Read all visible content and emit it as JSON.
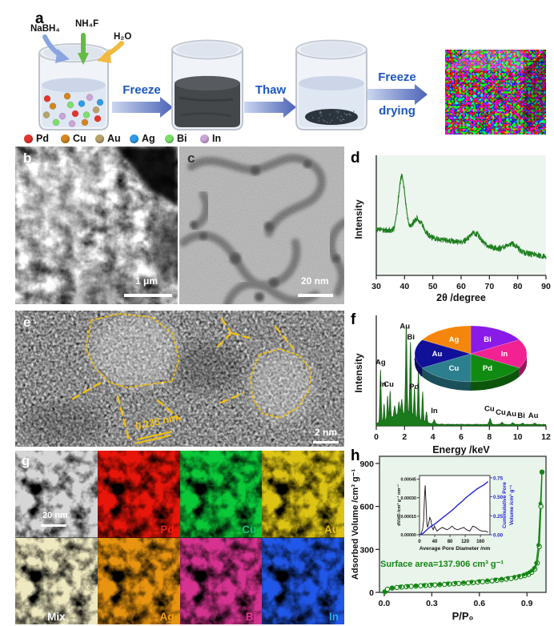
{
  "figure": {
    "panel_a": {
      "label": "a",
      "reagents": [
        {
          "name": "NaBH₄",
          "arrow_color": "#8aa4e2"
        },
        {
          "name": "NH₄F",
          "arrow_color": "#66bb44"
        },
        {
          "name": "H₂O",
          "arrow_color": "#f0bb3f"
        }
      ],
      "steps": [
        {
          "label": "Freeze"
        },
        {
          "label": "Thaw"
        },
        {
          "label_line1": "Freeze",
          "label_line2": "drying"
        }
      ],
      "step_text_color": "#1b57c4",
      "legend": [
        {
          "element": "Pd",
          "color": "#e4352b"
        },
        {
          "element": "Cu",
          "color": "#d5861c"
        },
        {
          "element": "Au",
          "color": "#b8a26a"
        },
        {
          "element": "Ag",
          "color": "#2e9ce6"
        },
        {
          "element": "Bi",
          "color": "#7ce06a"
        },
        {
          "element": "In",
          "color": "#cba4d8"
        }
      ]
    },
    "panel_b": {
      "label": "b",
      "scale_bar": "1 μm"
    },
    "panel_c": {
      "label": "c",
      "scale_bar": "20 nm"
    },
    "panel_d": {
      "label": "d"
    },
    "panel_e": {
      "label": "e",
      "lattice_spacing": "0.233 nm",
      "scale_bar": "2 nm",
      "annotation_color": "#f2c012"
    },
    "panel_f": {
      "label": "f"
    },
    "panel_g": {
      "label": "g",
      "scale_bar": "20 nm",
      "tiles": [
        {
          "name": "HAADF",
          "label": "",
          "map_color": "#d6d6d6",
          "label_color": "#ffffff"
        },
        {
          "name": "Pd",
          "label": "Pd",
          "map_color": "#e8150a",
          "label_color": "#f51d0f"
        },
        {
          "name": "Cu",
          "label": "Cu",
          "map_color": "#0ac838",
          "label_color": "#17c37d"
        },
        {
          "name": "Au",
          "label": "Au",
          "map_color": "#ddc414",
          "label_color": "#e8c013"
        },
        {
          "name": "Mix",
          "label": "Mix",
          "map_color": "#efe9c0",
          "label_color": "#ffffff"
        },
        {
          "name": "Ag",
          "label": "Ag",
          "map_color": "#e89410",
          "label_color": "#f59c12"
        },
        {
          "name": "Bi",
          "label": "Bi",
          "map_color": "#d63390",
          "label_color": "#ef2f96"
        },
        {
          "name": "In",
          "label": "In",
          "map_color": "#2057e8",
          "label_color": "#28a8f0"
        }
      ]
    },
    "panel_h": {
      "label": "h"
    }
  },
  "chart_data": [
    {
      "id": "xrd",
      "type": "line",
      "panel": "d",
      "xlabel": "2θ /degree",
      "ylabel": "Intensity",
      "xlim": [
        30,
        90
      ],
      "x_ticks": [
        30,
        40,
        50,
        60,
        70,
        80,
        90
      ],
      "grid": false,
      "line_color": "#1e7d1e",
      "bg_color": "#edf6ee",
      "baseline": {
        "start": 0.4,
        "end": 0.16
      },
      "noise_amplitude": 0.025,
      "peaks": [
        {
          "two_theta": 39.0,
          "rel_height": 0.48,
          "sigma": 1.2
        },
        {
          "two_theta": 44.6,
          "rel_height": 0.14,
          "sigma": 2.0
        },
        {
          "two_theta": 65.0,
          "rel_height": 0.1,
          "sigma": 2.0
        },
        {
          "two_theta": 78.0,
          "rel_height": 0.06,
          "sigma": 1.8
        }
      ]
    },
    {
      "id": "eds",
      "type": "area",
      "panel": "f",
      "xlabel": "Energy /keV",
      "ylabel": "Intensity",
      "xlim": [
        0,
        12
      ],
      "x_ticks": [
        0,
        2,
        4,
        6,
        8,
        10,
        12
      ],
      "fill_color": "#1b7a1b",
      "hump": {
        "center": 1.9,
        "h": 0.1,
        "s": 0.9
      },
      "peaks": [
        {
          "kev": 0.3,
          "h": 0.5,
          "s": 0.045
        },
        {
          "kev": 0.55,
          "h": 0.16,
          "s": 0.04
        },
        {
          "kev": 0.8,
          "h": 0.22,
          "s": 0.04
        },
        {
          "kev": 0.98,
          "h": 0.26,
          "s": 0.04
        },
        {
          "kev": 1.3,
          "h": 0.1,
          "s": 0.05
        },
        {
          "kev": 1.6,
          "h": 0.12,
          "s": 0.05
        },
        {
          "kev": 1.8,
          "h": 0.14,
          "s": 0.05
        },
        {
          "kev": 2.12,
          "h": 0.85,
          "s": 0.05
        },
        {
          "kev": 2.42,
          "h": 0.7,
          "s": 0.05
        },
        {
          "kev": 2.7,
          "h": 0.28,
          "s": 0.045
        },
        {
          "kev": 2.98,
          "h": 0.46,
          "s": 0.045
        },
        {
          "kev": 3.28,
          "h": 0.28,
          "s": 0.045
        },
        {
          "kev": 3.55,
          "h": 0.1,
          "s": 0.05
        },
        {
          "kev": 4.1,
          "h": 0.04,
          "s": 0.06
        },
        {
          "kev": 8.05,
          "h": 0.055,
          "s": 0.07
        },
        {
          "kev": 8.9,
          "h": 0.02,
          "s": 0.07
        },
        {
          "kev": 9.65,
          "h": 0.015,
          "s": 0.07
        },
        {
          "kev": 10.35,
          "h": 0.012,
          "s": 0.07
        },
        {
          "kev": 11.2,
          "h": 0.012,
          "s": 0.07
        }
      ],
      "peak_labels": [
        {
          "text": "Ag",
          "x": 0.3,
          "y": 0.58
        },
        {
          "text": "In",
          "x": 0.48,
          "y": 0.37
        },
        {
          "text": "Cu",
          "x": 0.88,
          "y": 0.37
        },
        {
          "text": "Au",
          "x": 2.02,
          "y": 0.92
        },
        {
          "text": "Bi",
          "x": 2.45,
          "y": 0.82
        },
        {
          "text": "Pd",
          "x": 2.68,
          "y": 0.35
        },
        {
          "text": "Ag",
          "x": 3.02,
          "y": 0.62
        },
        {
          "text": "In",
          "x": 3.34,
          "y": 0.47
        },
        {
          "text": "In",
          "x": 4.1,
          "y": 0.12
        },
        {
          "text": "Cu",
          "x": 8.0,
          "y": 0.14
        },
        {
          "text": "Cu",
          "x": 8.8,
          "y": 0.105
        },
        {
          "text": "Au",
          "x": 9.55,
          "y": 0.09
        },
        {
          "text": "Bi",
          "x": 10.25,
          "y": 0.075
        },
        {
          "text": "Au",
          "x": 11.1,
          "y": 0.075
        }
      ]
    },
    {
      "id": "composition_pie",
      "type": "pie",
      "panel": "f-inset",
      "start_angle_deg": 0,
      "direction": "clockwise",
      "label_color": "#ffffff",
      "slices": [
        {
          "label": "Bi",
          "value": 1,
          "color": "#8a1ae8"
        },
        {
          "label": "In",
          "value": 1,
          "color": "#f22293"
        },
        {
          "label": "Pd",
          "value": 1,
          "color": "#118a11"
        },
        {
          "label": "Cu",
          "value": 1,
          "color": "#2b7f8f"
        },
        {
          "label": "Au",
          "value": 1,
          "color": "#101099"
        },
        {
          "label": "Ag",
          "value": 1,
          "color": "#f5860b"
        }
      ]
    },
    {
      "id": "bet",
      "type": "scatter-line",
      "panel": "h",
      "xlabel": "P/P₀",
      "ylabel": "Adsorbed Volume /cm³ g⁻¹",
      "xlim": [
        -0.03,
        1.02
      ],
      "ylim": [
        0,
        950
      ],
      "x_tick_vals": [
        0,
        0.3,
        0.6,
        0.9
      ],
      "x_tick_labels": [
        "0.0",
        "0.3",
        "0.6",
        "0.9"
      ],
      "y_tick_vals": [
        0,
        300,
        600,
        900
      ],
      "y_tick_labels": [
        "0",
        "300",
        "600",
        "900"
      ],
      "color": "#148514",
      "bg_color": "#e9f4ea",
      "annotation": "Surface area=137.906 cm³ g⁻¹",
      "series": [
        {
          "name": "adsorption",
          "marker": "open",
          "x": [
            0.004,
            0.02,
            0.05,
            0.08,
            0.11,
            0.14,
            0.17,
            0.2,
            0.23,
            0.26,
            0.29,
            0.32,
            0.35,
            0.38,
            0.41,
            0.44,
            0.47,
            0.5,
            0.53,
            0.56,
            0.59,
            0.62,
            0.65,
            0.68,
            0.71,
            0.74,
            0.77,
            0.8,
            0.83,
            0.86,
            0.885,
            0.91,
            0.93,
            0.95,
            0.965,
            0.978,
            0.988,
            0.995
          ],
          "y": [
            4,
            22,
            30,
            34,
            37,
            40,
            42,
            44,
            46,
            48,
            50,
            52,
            54,
            56,
            58,
            60,
            62,
            64,
            66,
            68,
            71,
            74,
            77,
            80,
            84,
            88,
            92,
            97,
            103,
            110,
            117,
            126,
            140,
            163,
            205,
            320,
            600,
            840
          ]
        },
        {
          "name": "desorption",
          "marker": "filled",
          "x": [
            0.995,
            0.985,
            0.972,
            0.958,
            0.945,
            0.93,
            0.915,
            0.9,
            0.88,
            0.85,
            0.82,
            0.78,
            0.74,
            0.7,
            0.65,
            0.6,
            0.55,
            0.5,
            0.45,
            0.4,
            0.35,
            0.3,
            0.25,
            0.2,
            0.15,
            0.1,
            0.05,
            0.004
          ],
          "y": [
            840,
            620,
            330,
            205,
            170,
            152,
            140,
            132,
            124,
            115,
            108,
            101,
            95,
            90,
            84,
            79,
            74,
            70,
            66,
            62,
            58,
            55,
            51,
            48,
            44,
            40,
            32,
            5
          ]
        }
      ],
      "inset": {
        "xlabel": "Average Pore Diameter /nm",
        "ylabel_left": "dV/dD /cm³ g⁻¹ nm⁻¹",
        "ylabel_right_line1": "Cummulative Pore",
        "ylabel_right_line2": "Volume /cm³ g⁻¹",
        "xlim": [
          0,
          185
        ],
        "x_ticks": [
          0,
          40,
          80,
          120,
          160
        ],
        "left_lim": [
          0,
          0.00048
        ],
        "left_tick_vals": [
          0,
          0.00015,
          0.0003,
          0.00045
        ],
        "left_tick_labels": [
          "0.00000",
          "0.00015",
          "0.00030",
          "0.00045"
        ],
        "right_lim": [
          0,
          0.78
        ],
        "right_tick_vals": [
          0,
          0.25,
          0.5,
          0.75
        ],
        "right_tick_labels": [
          "0.00",
          "0.25",
          "0.50",
          "0.75"
        ],
        "psd_color": "#111111",
        "cum_color": "#2323d6",
        "psd": {
          "x": [
            4,
            8,
            11,
            13,
            15,
            17,
            19,
            21,
            24,
            27,
            30,
            33,
            36,
            39,
            42,
            46,
            50,
            55,
            60,
            66,
            72,
            78,
            85,
            92,
            100,
            108,
            116,
            124,
            132,
            140,
            148,
            156,
            164,
            172,
            180
          ],
          "y": [
            1e-05,
            4e-05,
            0.00012,
            0.0003,
            0.0004,
            0.00026,
            0.00011,
            6e-05,
            9e-05,
            0.00014,
            0.00012,
            6e-05,
            4e-05,
            7e-05,
            5e-05,
            3e-05,
            4e-05,
            5e-05,
            6e-05,
            5e-05,
            4e-05,
            5e-05,
            7e-05,
            5e-05,
            4e-05,
            5e-05,
            6e-05,
            4e-05,
            3e-05,
            7e-05,
            6e-05,
            4e-05,
            3e-05,
            3e-05,
            2e-05
          ]
        },
        "cumulative": {
          "x": [
            0,
            10,
            20,
            30,
            40,
            50,
            60,
            70,
            80,
            90,
            100,
            110,
            120,
            130,
            140,
            150,
            160,
            170,
            180
          ],
          "y": [
            0.0,
            0.02,
            0.07,
            0.11,
            0.14,
            0.18,
            0.22,
            0.26,
            0.3,
            0.34,
            0.39,
            0.43,
            0.48,
            0.52,
            0.56,
            0.6,
            0.63,
            0.66,
            0.7
          ]
        }
      }
    }
  ]
}
